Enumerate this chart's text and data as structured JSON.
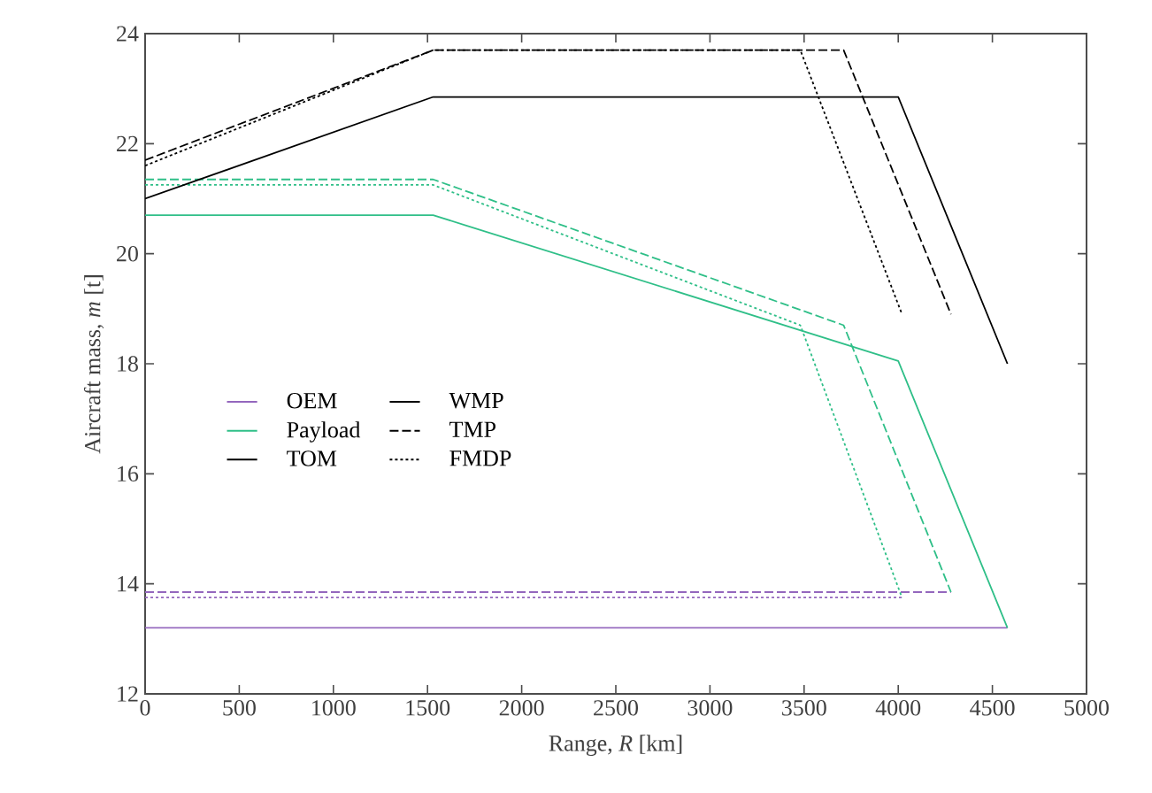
{
  "chart_data": {
    "type": "line",
    "xlabel": "Range, *R* [km]",
    "ylabel": "Aircraft mass, *m* [t]",
    "xlim": [
      0,
      5000
    ],
    "ylim": [
      12,
      24
    ],
    "xticks": [
      0,
      500,
      1000,
      1500,
      2000,
      2500,
      3000,
      3500,
      4000,
      4500,
      5000
    ],
    "yticks": [
      12,
      14,
      16,
      18,
      20,
      22,
      24
    ],
    "grid": false,
    "legend": "left",
    "marker": "none",
    "annotations": [
      "WMP"
    ],
    "series": [
      {
        "name": "OEM",
        "color": "#9467bd",
        "line_style": "solid",
        "x": [
          0,
          4580
        ],
        "values": [
          13.2,
          13.2
        ]
      },
      {
        "color": "#9467bd",
        "line_style": "dashed",
        "x": [
          0,
          4280
        ],
        "values": [
          13.85,
          13.85
        ]
      },
      {
        "color": "#9467bd",
        "line_style": "dotted",
        "x": [
          0,
          4020
        ],
        "values": [
          13.75,
          13.75
        ]
      },
      {
        "name": "Payload",
        "color": "#2fbf88",
        "line_style": "solid",
        "x": [
          0,
          1530,
          4000,
          4580
        ],
        "values": [
          20.7,
          20.7,
          18.05,
          13.2
        ]
      },
      {
        "color": "#2fbf88",
        "line_style": "dashed",
        "x": [
          0,
          1530,
          3710,
          4280
        ],
        "values": [
          21.35,
          21.35,
          18.7,
          13.85
        ]
      },
      {
        "color": "#2fbf88",
        "line_style": "dotted",
        "x": [
          0,
          1530,
          3480,
          4020
        ],
        "values": [
          21.25,
          21.25,
          18.7,
          13.75
        ]
      },
      {
        "name": "TOM",
        "color": "#000000",
        "line_style": "solid",
        "x": [
          0,
          1530,
          4000,
          4580
        ],
        "values": [
          21.0,
          22.85,
          22.85,
          18.0
        ]
      },
      {
        "name": "TMP",
        "color": "#000000",
        "line_style": "dashed",
        "x": [
          0,
          1530,
          3710,
          4280
        ],
        "values": [
          21.7,
          23.7,
          23.7,
          18.9
        ]
      },
      {
        "name": "FMDP",
        "color": "#000000",
        "line_style": "dotted",
        "x": [
          0,
          1530,
          3480,
          4020
        ],
        "values": [
          21.6,
          23.7,
          23.7,
          18.9
        ]
      }
    ]
  }
}
